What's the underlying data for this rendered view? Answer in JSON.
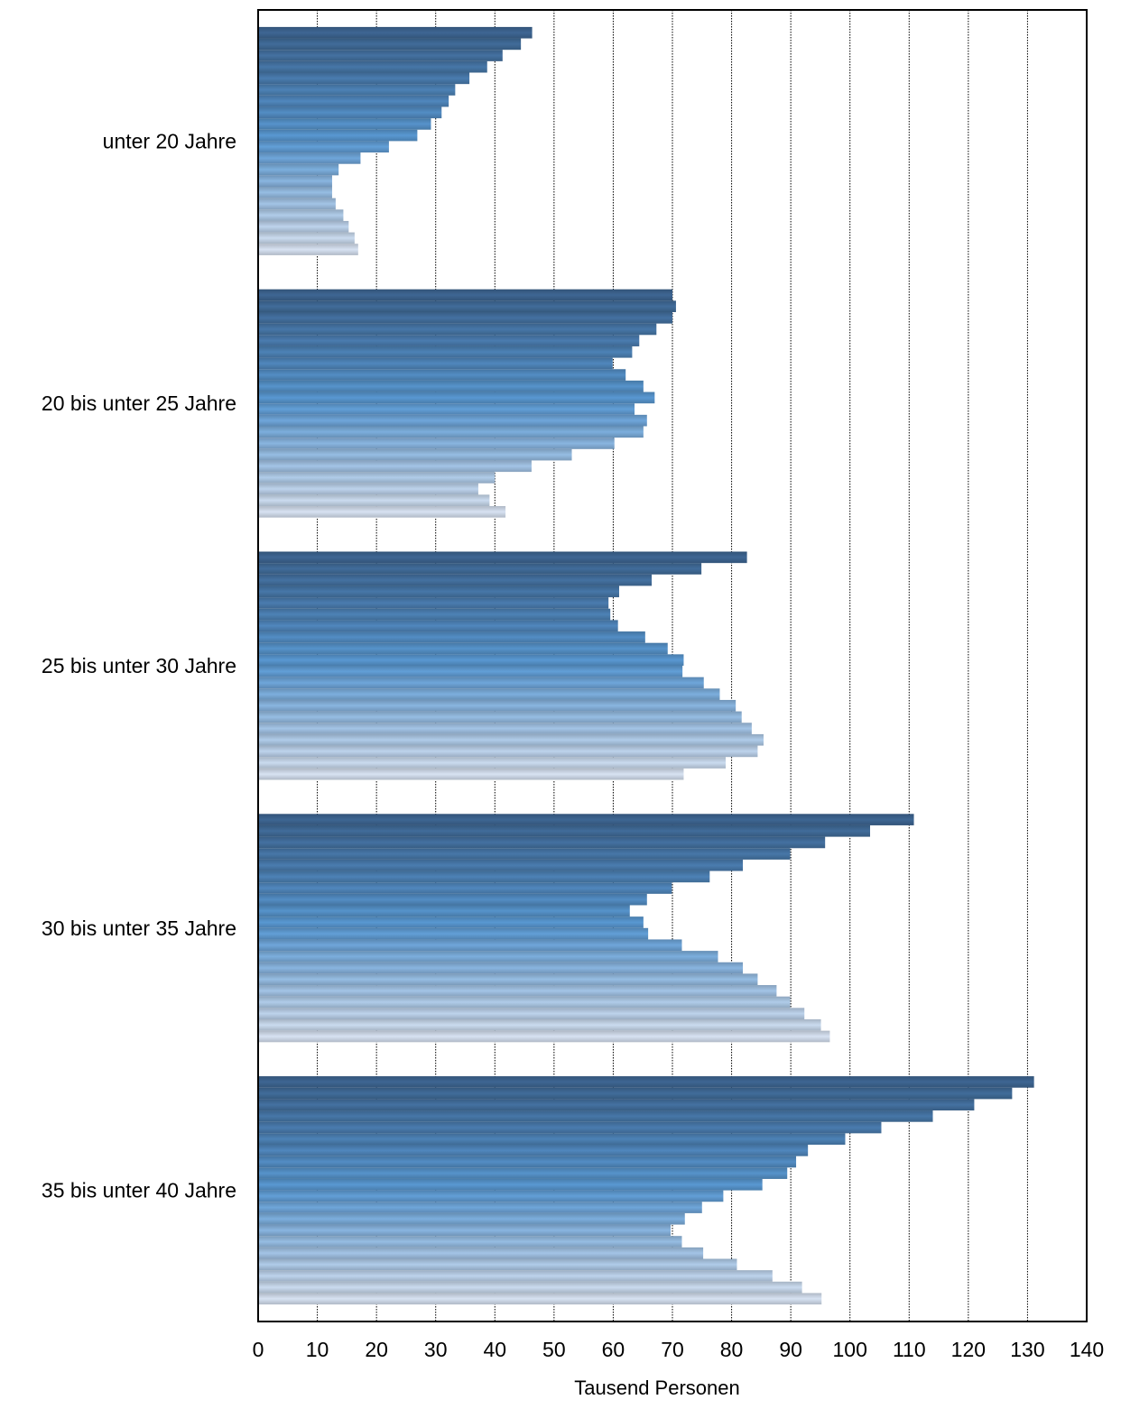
{
  "chart_data": {
    "type": "bar",
    "orientation": "horizontal",
    "xlabel": "Tausend Personen",
    "xlim": [
      0,
      140
    ],
    "xticks": [
      0,
      10,
      20,
      30,
      40,
      50,
      60,
      70,
      80,
      90,
      100,
      110,
      120,
      130,
      140
    ],
    "grid": "vertical-dotted",
    "color_gradient": [
      "#3e6693",
      "#5b9bd5",
      "#d7e2f2"
    ],
    "categories": [
      "unter 20 Jahre",
      "20 bis unter 25 Jahre",
      "25 bis unter 30 Jahre",
      "30 bis unter 35 Jahre",
      "35 bis unter 40 Jahre"
    ],
    "groups": [
      {
        "category": "unter 20 Jahre",
        "values": [
          46.3,
          44.4,
          41.3,
          38.7,
          35.7,
          33.3,
          32.2,
          31.0,
          29.2,
          26.9,
          22.1,
          17.3,
          13.6,
          12.5,
          12.5,
          13.1,
          14.4,
          15.3,
          16.3,
          16.9
        ]
      },
      {
        "category": "20 bis unter 25 Jahre",
        "values": [
          70.0,
          70.6,
          70.0,
          67.3,
          64.4,
          63.2,
          59.9,
          62.1,
          65.1,
          67.0,
          63.6,
          65.7,
          65.1,
          60.2,
          53.0,
          46.2,
          40.0,
          37.2,
          39.1,
          41.8
        ]
      },
      {
        "category": "25 bis unter 30 Jahre",
        "values": [
          82.6,
          74.9,
          66.5,
          61.0,
          59.2,
          59.5,
          60.8,
          65.4,
          69.2,
          71.9,
          71.7,
          75.3,
          78.0,
          80.7,
          81.7,
          83.4,
          85.4,
          84.4,
          79.0,
          71.9
        ]
      },
      {
        "category": "30 bis unter 35 Jahre",
        "values": [
          110.8,
          103.4,
          95.8,
          89.9,
          81.9,
          76.3,
          69.9,
          65.7,
          62.8,
          65.1,
          65.9,
          71.6,
          77.7,
          81.9,
          84.4,
          87.6,
          89.9,
          92.3,
          95.1,
          96.6
        ]
      },
      {
        "category": "35 bis unter 40 Jahre",
        "values": [
          131.1,
          127.4,
          121.0,
          114.0,
          105.3,
          99.2,
          92.9,
          90.9,
          89.4,
          85.2,
          78.6,
          75.0,
          72.1,
          69.7,
          71.6,
          75.2,
          80.9,
          86.9,
          91.9,
          95.2
        ]
      }
    ]
  }
}
